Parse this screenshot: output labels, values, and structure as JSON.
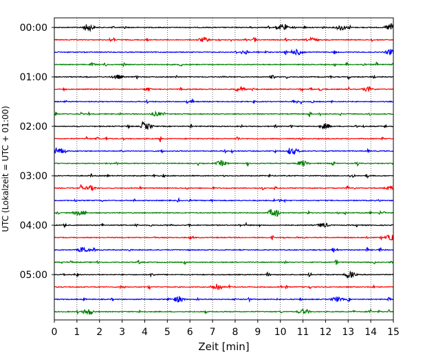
{
  "chart_data": {
    "type": "line",
    "title": "",
    "xlabel": "Zeit  [min]",
    "ylabel": "UTC (Lokalzeit = UTC + 01:00)",
    "xlim": [
      0,
      15
    ],
    "x_ticks": [
      "0",
      "1",
      "2",
      "3",
      "4",
      "5",
      "6",
      "7",
      "8",
      "9",
      "10",
      "11",
      "12",
      "13",
      "14",
      "15"
    ],
    "y_tick_labels": [
      "00:00",
      "01:00",
      "02:00",
      "03:00",
      "04:00",
      "05:00"
    ],
    "grid": "vertical dotted at each minute",
    "trace_interval_minutes": 15,
    "trace_count": 24,
    "color_cycle": [
      "#000000",
      "#ff0000",
      "#0000ff",
      "#008000"
    ],
    "events": [
      {
        "trace": 0,
        "minute": 1.5,
        "amp": 0.55
      },
      {
        "trace": 0,
        "minute": 10.1,
        "amp": 0.4
      },
      {
        "trace": 0,
        "minute": 12.7,
        "amp": 0.45
      },
      {
        "trace": 0,
        "minute": 14.9,
        "amp": 0.6
      },
      {
        "trace": 1,
        "minute": 6.6,
        "amp": 0.35
      },
      {
        "trace": 1,
        "minute": 11.4,
        "amp": 0.35
      },
      {
        "trace": 2,
        "minute": 10.8,
        "amp": 0.45
      },
      {
        "trace": 2,
        "minute": 14.9,
        "amp": 0.4
      },
      {
        "trace": 4,
        "minute": 2.8,
        "amp": 0.3
      },
      {
        "trace": 5,
        "minute": 8.2,
        "amp": 0.3
      },
      {
        "trace": 5,
        "minute": 13.9,
        "amp": 0.35
      },
      {
        "trace": 7,
        "minute": 4.5,
        "amp": 0.3
      },
      {
        "trace": 8,
        "minute": 4.1,
        "amp": 0.45
      },
      {
        "trace": 8,
        "minute": 12.0,
        "amp": 0.4
      },
      {
        "trace": 10,
        "minute": 0.3,
        "amp": 0.4
      },
      {
        "trace": 10,
        "minute": 10.6,
        "amp": 0.35
      },
      {
        "trace": 11,
        "minute": 7.4,
        "amp": 0.4
      },
      {
        "trace": 11,
        "minute": 11.0,
        "amp": 0.4
      },
      {
        "trace": 13,
        "minute": 1.6,
        "amp": 0.35
      },
      {
        "trace": 13,
        "minute": 14.9,
        "amp": 0.35
      },
      {
        "trace": 15,
        "minute": 9.7,
        "amp": 0.6
      },
      {
        "trace": 15,
        "minute": 1.1,
        "amp": 0.4
      },
      {
        "trace": 16,
        "minute": 11.9,
        "amp": 0.35
      },
      {
        "trace": 17,
        "minute": 14.9,
        "amp": 0.45
      },
      {
        "trace": 18,
        "minute": 1.3,
        "amp": 0.45
      },
      {
        "trace": 20,
        "minute": 13.1,
        "amp": 0.45
      },
      {
        "trace": 21,
        "minute": 7.2,
        "amp": 0.5
      },
      {
        "trace": 22,
        "minute": 5.5,
        "amp": 0.45
      },
      {
        "trace": 22,
        "minute": 12.5,
        "amp": 0.35
      },
      {
        "trace": 23,
        "minute": 1.5,
        "amp": 0.45
      },
      {
        "trace": 23,
        "minute": 11.0,
        "amp": 0.35
      }
    ]
  }
}
